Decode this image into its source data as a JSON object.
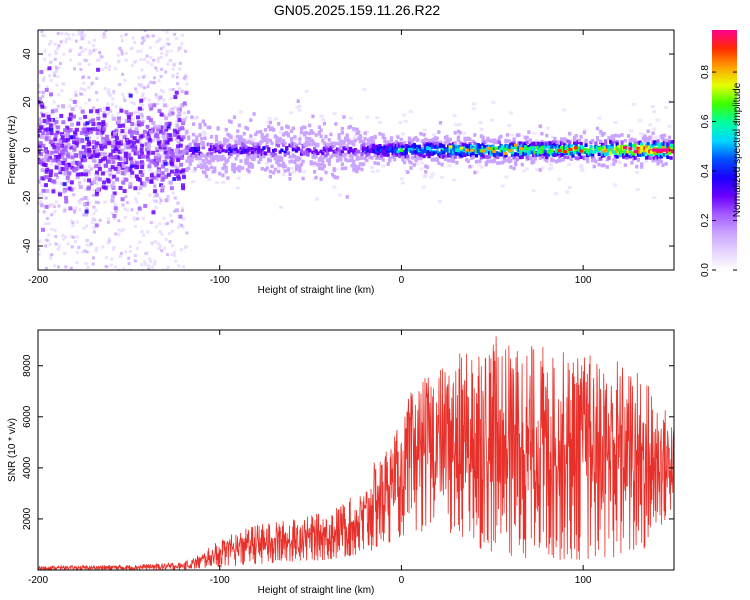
{
  "title": "GN05.2025.159.11.26.R22",
  "colors": {
    "snr_line": "#e8302a",
    "axis": "#000000",
    "colormap": [
      "#ffffff",
      "#e6d4ff",
      "#c9a3ff",
      "#a45cff",
      "#6a00ff",
      "#1a00ff",
      "#0050ff",
      "#00d7ff",
      "#00ffa0",
      "#3cff00",
      "#e6ff00",
      "#ffa000",
      "#ff2a00",
      "#ff0090"
    ]
  },
  "chart_data": [
    {
      "type": "heatmap",
      "xlabel": "Height of straight line (km)",
      "ylabel": "Frequency (Hz)",
      "xlim": [
        -200,
        150
      ],
      "ylim": [
        -50,
        50
      ],
      "x_ticks": [
        -200,
        -100,
        0,
        100
      ],
      "y_ticks": [
        -40,
        -20,
        0,
        20,
        40
      ],
      "colorbar": {
        "label": "Normalized spectral amplitude",
        "range": [
          0,
          1
        ],
        "ticks": [
          "0.0",
          "0.2",
          "0.4",
          "0.6",
          "0.8"
        ]
      },
      "ridge_center_hz": 0,
      "noise_spread_region_km": [
        -200,
        -118
      ],
      "ridge_intensity_profile": [
        {
          "km": -200,
          "amp": 0.1
        },
        {
          "km": -150,
          "amp": 0.15
        },
        {
          "km": -115,
          "amp": 0.35
        },
        {
          "km": -60,
          "amp": 0.35
        },
        {
          "km": -30,
          "amp": 0.3
        },
        {
          "km": 0,
          "amp": 0.5
        },
        {
          "km": 50,
          "amp": 0.65
        },
        {
          "km": 100,
          "amp": 0.7
        },
        {
          "km": 148,
          "amp": 0.95
        }
      ]
    },
    {
      "type": "line",
      "xlabel": "Height of straight line (km)",
      "ylabel": "SNR (10 * v/v)",
      "xlim": [
        -200,
        150
      ],
      "ylim": [
        0,
        9400
      ],
      "x_ticks": [
        -200,
        -100,
        0,
        100
      ],
      "y_ticks": [
        2000,
        4000,
        6000,
        8000
      ],
      "envelope": [
        {
          "km": -200,
          "low": 0,
          "high": 150
        },
        {
          "km": -150,
          "low": 0,
          "high": 200
        },
        {
          "km": -120,
          "low": 0,
          "high": 300
        },
        {
          "km": -110,
          "low": 50,
          "high": 650
        },
        {
          "km": -100,
          "low": 100,
          "high": 1200
        },
        {
          "km": -80,
          "low": 200,
          "high": 1800
        },
        {
          "km": -60,
          "low": 300,
          "high": 2000
        },
        {
          "km": -40,
          "low": 400,
          "high": 2300
        },
        {
          "km": -20,
          "low": 600,
          "high": 3200
        },
        {
          "km": -15,
          "low": 800,
          "high": 4200
        },
        {
          "km": 0,
          "low": 1300,
          "high": 5800
        },
        {
          "km": 5,
          "low": 1500,
          "high": 7000
        },
        {
          "km": 20,
          "low": 1500,
          "high": 8000
        },
        {
          "km": 35,
          "low": 1000,
          "high": 8600
        },
        {
          "km": 45,
          "low": 800,
          "high": 9300
        },
        {
          "km": 60,
          "low": 500,
          "high": 9000
        },
        {
          "km": 80,
          "low": 400,
          "high": 8800
        },
        {
          "km": 100,
          "low": 400,
          "high": 8500
        },
        {
          "km": 120,
          "low": 500,
          "high": 8400
        },
        {
          "km": 135,
          "low": 800,
          "high": 7500
        },
        {
          "km": 150,
          "low": 2500,
          "high": 5800
        }
      ]
    }
  ]
}
